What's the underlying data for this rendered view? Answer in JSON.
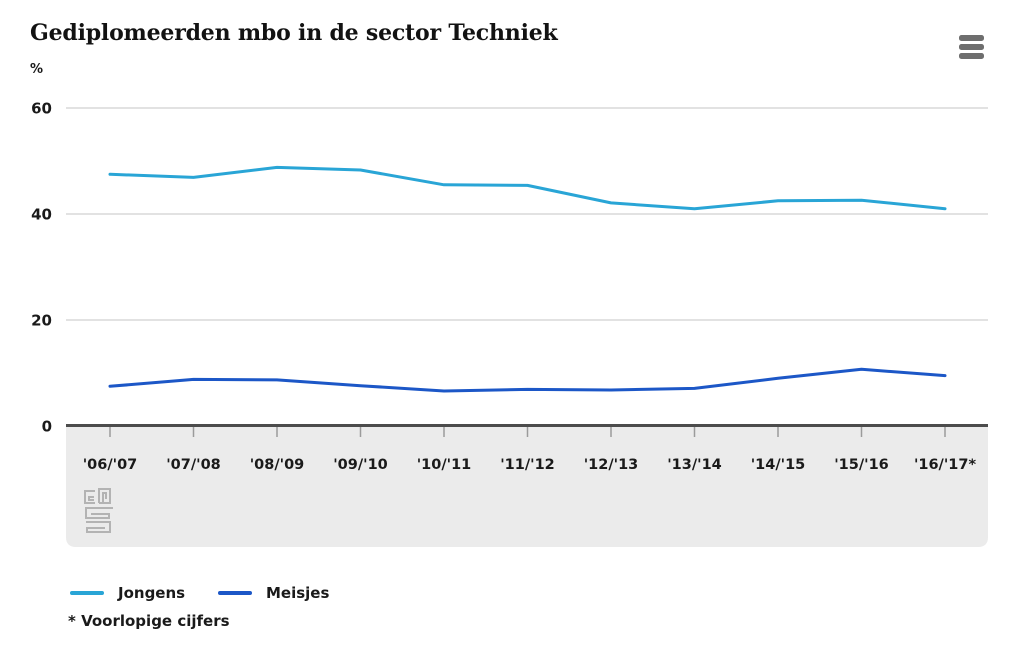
{
  "chart_data": {
    "type": "line",
    "title": "Gediplomeerden mbo in de sector Techniek",
    "ylabel": "%",
    "xlabel": "",
    "categories": [
      "'06/'07",
      "'07/'08",
      "'08/'09",
      "'09/'10",
      "'10/'11",
      "'11/'12",
      "'12/'13",
      "'13/'14",
      "'14/'15",
      "'15/'16",
      "'16/'17*"
    ],
    "series": [
      {
        "name": "Jongens",
        "color": "#29a5d6",
        "values": [
          47.5,
          46.9,
          48.8,
          48.3,
          45.5,
          45.4,
          42.1,
          41.0,
          42.5,
          42.6,
          41.0
        ]
      },
      {
        "name": "Meisjes",
        "color": "#1c57c7",
        "values": [
          7.5,
          8.8,
          8.7,
          7.6,
          6.6,
          6.9,
          6.8,
          7.1,
          9.0,
          10.7,
          9.5
        ]
      }
    ],
    "ylim": [
      0,
      60
    ],
    "yticks": [
      0,
      20,
      40,
      60
    ],
    "grid": true,
    "legend_position": "bottom"
  },
  "menu": {
    "icon": "hamburger-menu-icon"
  },
  "footnote": "* Voorlopige cijfers",
  "branding": {
    "logo": "cbs-logo"
  },
  "colors": {
    "axis": "#4c4c4c",
    "grid": "#d8d8d8",
    "band": "#ebebeb",
    "tick": "#9b9b9b",
    "text": "#1a1a1a"
  }
}
